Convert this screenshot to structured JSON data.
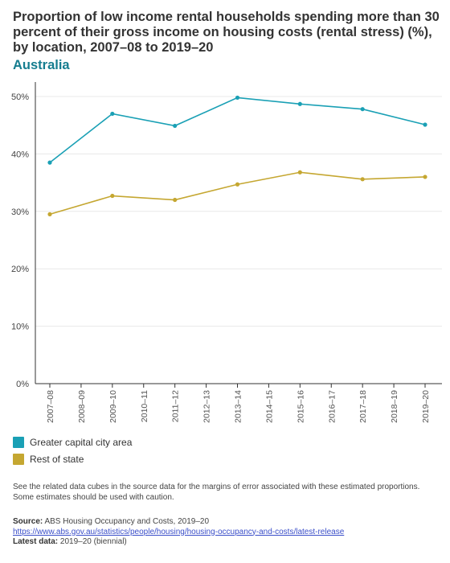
{
  "title": "Proportion of low income rental households spending more than 30 percent of their gross income on housing costs (rental stress) (%), by location, 2007–08 to 2019–20",
  "subtitle": "Australia",
  "colors": {
    "series1": "#1aa0b5",
    "series2": "#c5a731",
    "subtitle": "#157d8f",
    "grid": "#e8e8e8",
    "axis": "#333333",
    "link": "#3a4ec9"
  },
  "chart_data": {
    "type": "line",
    "categories": [
      "2007–08",
      "2008–09",
      "2009–10",
      "2010–11",
      "2011–12",
      "2012–13",
      "2013–14",
      "2014–15",
      "2015–16",
      "2016–17",
      "2017–18",
      "2018–19",
      "2019–20"
    ],
    "series": [
      {
        "name": "Greater capital city area",
        "color": "#1aa0b5",
        "points": [
          {
            "x": "2007–08",
            "y": 38.5
          },
          {
            "x": "2009–10",
            "y": 47.0
          },
          {
            "x": "2011–12",
            "y": 44.9
          },
          {
            "x": "2013–14",
            "y": 49.8
          },
          {
            "x": "2015–16",
            "y": 48.7
          },
          {
            "x": "2017–18",
            "y": 47.8
          },
          {
            "x": "2019–20",
            "y": 45.1
          }
        ]
      },
      {
        "name": "Rest of state",
        "color": "#c5a731",
        "points": [
          {
            "x": "2007–08",
            "y": 29.5
          },
          {
            "x": "2009–10",
            "y": 32.7
          },
          {
            "x": "2011–12",
            "y": 32.0
          },
          {
            "x": "2013–14",
            "y": 34.7
          },
          {
            "x": "2015–16",
            "y": 36.8
          },
          {
            "x": "2017–18",
            "y": 35.6
          },
          {
            "x": "2019–20",
            "y": 36.0
          }
        ]
      }
    ],
    "yticks": [
      "0%",
      "10%",
      "20%",
      "30%",
      "40%",
      "50%"
    ],
    "ylim": [
      0,
      50
    ],
    "grid": true,
    "legend_position": "bottom-left"
  },
  "legend": [
    {
      "label": "Greater capital city area",
      "color": "#1aa0b5"
    },
    {
      "label": "Rest of state",
      "color": "#c5a731"
    }
  ],
  "note": "See the related data cubes in the source data for the margins of error associated with these estimated proportions. Some estimates should be used with caution.",
  "source": {
    "label": "Source:",
    "text": "ABS Housing Occupancy and Costs, 2019–20",
    "url": "https://www.abs.gov.au/statistics/people/housing/housing-occupancy-and-costs/latest-release",
    "latest_label": "Latest data:",
    "latest_text": "2019–20 (biennial)"
  }
}
